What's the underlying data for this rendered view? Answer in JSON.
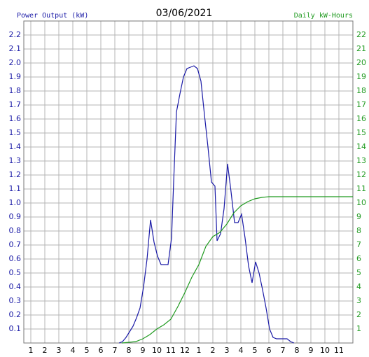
{
  "chart_data": {
    "type": "line",
    "title": "03/06/2021",
    "y_label": "Power Output (kW)",
    "y2_label": "Daily kW-Hours",
    "xlim": [
      0.5,
      24
    ],
    "xticks": [
      1,
      2,
      3,
      4,
      5,
      6,
      7,
      8,
      9,
      10,
      11,
      12,
      {
        "value": 13,
        "label": "1"
      },
      {
        "value": 14,
        "label": "2"
      },
      {
        "value": 15,
        "label": "3"
      },
      {
        "value": 16,
        "label": "4"
      },
      {
        "value": 17,
        "label": "5"
      },
      {
        "value": 18,
        "label": "6"
      },
      {
        "value": 19,
        "label": "7"
      },
      {
        "value": 20,
        "label": "8"
      },
      {
        "value": 21,
        "label": "9"
      },
      {
        "value": 22,
        "label": "10"
      },
      {
        "value": 23,
        "label": "11"
      }
    ],
    "ylim": [
      0,
      2.3
    ],
    "yticks": [
      0.1,
      0.2,
      0.3,
      0.4,
      0.5,
      0.6,
      0.7,
      0.8,
      0.9,
      {
        "value": 1,
        "label": "1.0"
      },
      1.1,
      1.2,
      1.3,
      1.4,
      1.5,
      1.6,
      1.7,
      1.8,
      1.9,
      {
        "value": 2,
        "label": "2.0"
      },
      2.1,
      2.2
    ],
    "y2lim": [
      0,
      23
    ],
    "y2ticks": [
      1,
      2,
      3,
      4,
      5,
      6,
      7,
      8,
      9,
      10,
      11,
      12,
      13,
      14,
      15,
      16,
      17,
      18,
      19,
      20,
      21,
      22
    ],
    "grid": true,
    "series": [
      {
        "name": "Power Output (kW)",
        "color": "#1a1aa6",
        "x": [
          7.3,
          7.55,
          7.8,
          8.05,
          8.3,
          8.55,
          8.8,
          9.05,
          9.3,
          9.55,
          9.8,
          10.05,
          10.3,
          10.8,
          11.05,
          11.2,
          11.4,
          11.65,
          11.9,
          12.15,
          12.4,
          12.65,
          12.9,
          13.15,
          13.4,
          13.65,
          13.9,
          14.15,
          14.3,
          14.55,
          14.8,
          15.05,
          15.3,
          15.55,
          15.8,
          16.05,
          16.3,
          16.55,
          16.8,
          17.05,
          17.3,
          17.55,
          17.8,
          18.05,
          18.3,
          18.55,
          19.3,
          19.55,
          19.8
        ],
        "values": [
          0,
          0.01,
          0.04,
          0.08,
          0.12,
          0.18,
          0.25,
          0.4,
          0.6,
          0.88,
          0.72,
          0.62,
          0.56,
          0.56,
          0.75,
          1.15,
          1.65,
          1.78,
          1.9,
          1.96,
          1.97,
          1.98,
          1.96,
          1.87,
          1.63,
          1.4,
          1.15,
          1.12,
          0.73,
          0.78,
          0.96,
          1.28,
          1.08,
          0.86,
          0.86,
          0.92,
          0.75,
          0.55,
          0.43,
          0.58,
          0.5,
          0.38,
          0.25,
          0.1,
          0.04,
          0.03,
          0.03,
          0.01,
          0
        ]
      },
      {
        "name": "Daily kW-Hours",
        "color": "#1f9a1f",
        "axis": "y2",
        "x": [
          7.5,
          8.5,
          9,
          9.5,
          10,
          10.5,
          11,
          11.5,
          12,
          12.5,
          13,
          13.5,
          14,
          14.5,
          15,
          15.5,
          16,
          16.5,
          17,
          17.5,
          18,
          24
        ],
        "values": [
          0,
          0.1,
          0.3,
          0.6,
          1.0,
          1.3,
          1.7,
          2.6,
          3.6,
          4.7,
          5.6,
          6.9,
          7.6,
          7.9,
          8.5,
          9.3,
          9.8,
          10.1,
          10.3,
          10.4,
          10.45,
          10.45
        ]
      }
    ]
  }
}
